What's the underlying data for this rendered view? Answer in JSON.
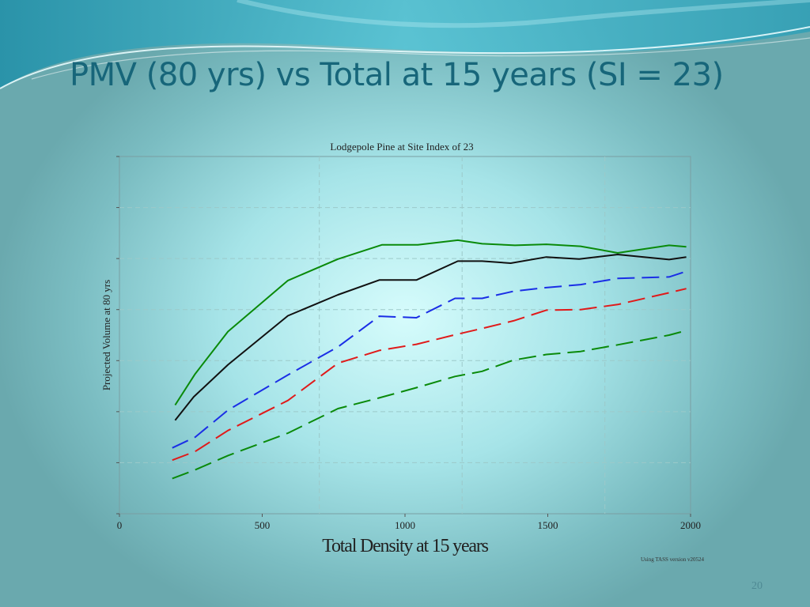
{
  "slide": {
    "title": "PMV (80 yrs) vs Total at 15 years (SI = 23)",
    "page_number": "20"
  },
  "colors": {
    "title": "#17667a",
    "green": "#0a8a0a",
    "black": "#111111",
    "blue": "#1a2ee6",
    "red": "#e01a1a",
    "grid": "#9cc9c9"
  },
  "chart_data": {
    "type": "line",
    "title": "Lodgepole Pine at Site Index of 23",
    "xlabel": "Total Density at 15 years",
    "ylabel": "Projected Volume at 80 yrs",
    "footnote": "Using TASS version v20524",
    "xlim": [
      0,
      2000
    ],
    "ylim": [
      0,
      7
    ],
    "x_ticks": [
      0,
      500,
      1000,
      1500,
      2000
    ],
    "x_tick_labels": [
      "0",
      "500",
      "1000",
      "1500",
      "2000"
    ],
    "x_minor_grid": [
      700,
      1200,
      1700
    ],
    "y_ticks": [
      1,
      2,
      3,
      4,
      5,
      6,
      7
    ],
    "grid": true,
    "series": [
      {
        "name": "green-solid",
        "color": "#0a8a0a",
        "dash": "solid",
        "x": [
          195,
          265,
          380,
          590,
          765,
          920,
          1045,
          1185,
          1270,
          1385,
          1495,
          1615,
          1745,
          1925,
          1985
        ],
        "y": [
          2.13,
          2.74,
          3.57,
          4.57,
          4.99,
          5.27,
          5.27,
          5.36,
          5.29,
          5.26,
          5.28,
          5.24,
          5.11,
          5.26,
          5.23
        ]
      },
      {
        "name": "black-solid",
        "color": "#111111",
        "dash": "solid",
        "x": [
          195,
          260,
          380,
          590,
          765,
          910,
          1040,
          1185,
          1270,
          1370,
          1495,
          1610,
          1745,
          1925,
          1985
        ],
        "y": [
          1.83,
          2.29,
          2.92,
          3.88,
          4.29,
          4.58,
          4.58,
          4.95,
          4.95,
          4.91,
          5.03,
          4.99,
          5.08,
          4.98,
          5.03
        ]
      },
      {
        "name": "blue-dashed",
        "color": "#1a2ee6",
        "dash": "long",
        "x": [
          185,
          265,
          380,
          590,
          765,
          910,
          1040,
          1175,
          1270,
          1380,
          1495,
          1615,
          1745,
          1925,
          1985
        ],
        "y": [
          1.29,
          1.5,
          2.03,
          2.72,
          3.27,
          3.87,
          3.84,
          4.22,
          4.22,
          4.36,
          4.43,
          4.49,
          4.61,
          4.64,
          4.75
        ]
      },
      {
        "name": "red-dashed",
        "color": "#e01a1a",
        "dash": "long",
        "x": [
          185,
          265,
          380,
          590,
          765,
          910,
          1040,
          1185,
          1270,
          1380,
          1495,
          1615,
          1745,
          1925,
          1985
        ],
        "y": [
          1.05,
          1.22,
          1.63,
          2.22,
          2.95,
          3.2,
          3.32,
          3.52,
          3.63,
          3.78,
          3.99,
          4.0,
          4.1,
          4.33,
          4.41
        ]
      },
      {
        "name": "green-dashed",
        "color": "#0a8a0a",
        "dash": "long",
        "x": [
          185,
          265,
          380,
          590,
          765,
          910,
          1040,
          1175,
          1270,
          1380,
          1495,
          1615,
          1745,
          1925,
          1985
        ],
        "y": [
          0.69,
          0.86,
          1.14,
          1.58,
          2.06,
          2.27,
          2.47,
          2.69,
          2.79,
          3.01,
          3.12,
          3.18,
          3.31,
          3.5,
          3.59
        ]
      }
    ]
  }
}
